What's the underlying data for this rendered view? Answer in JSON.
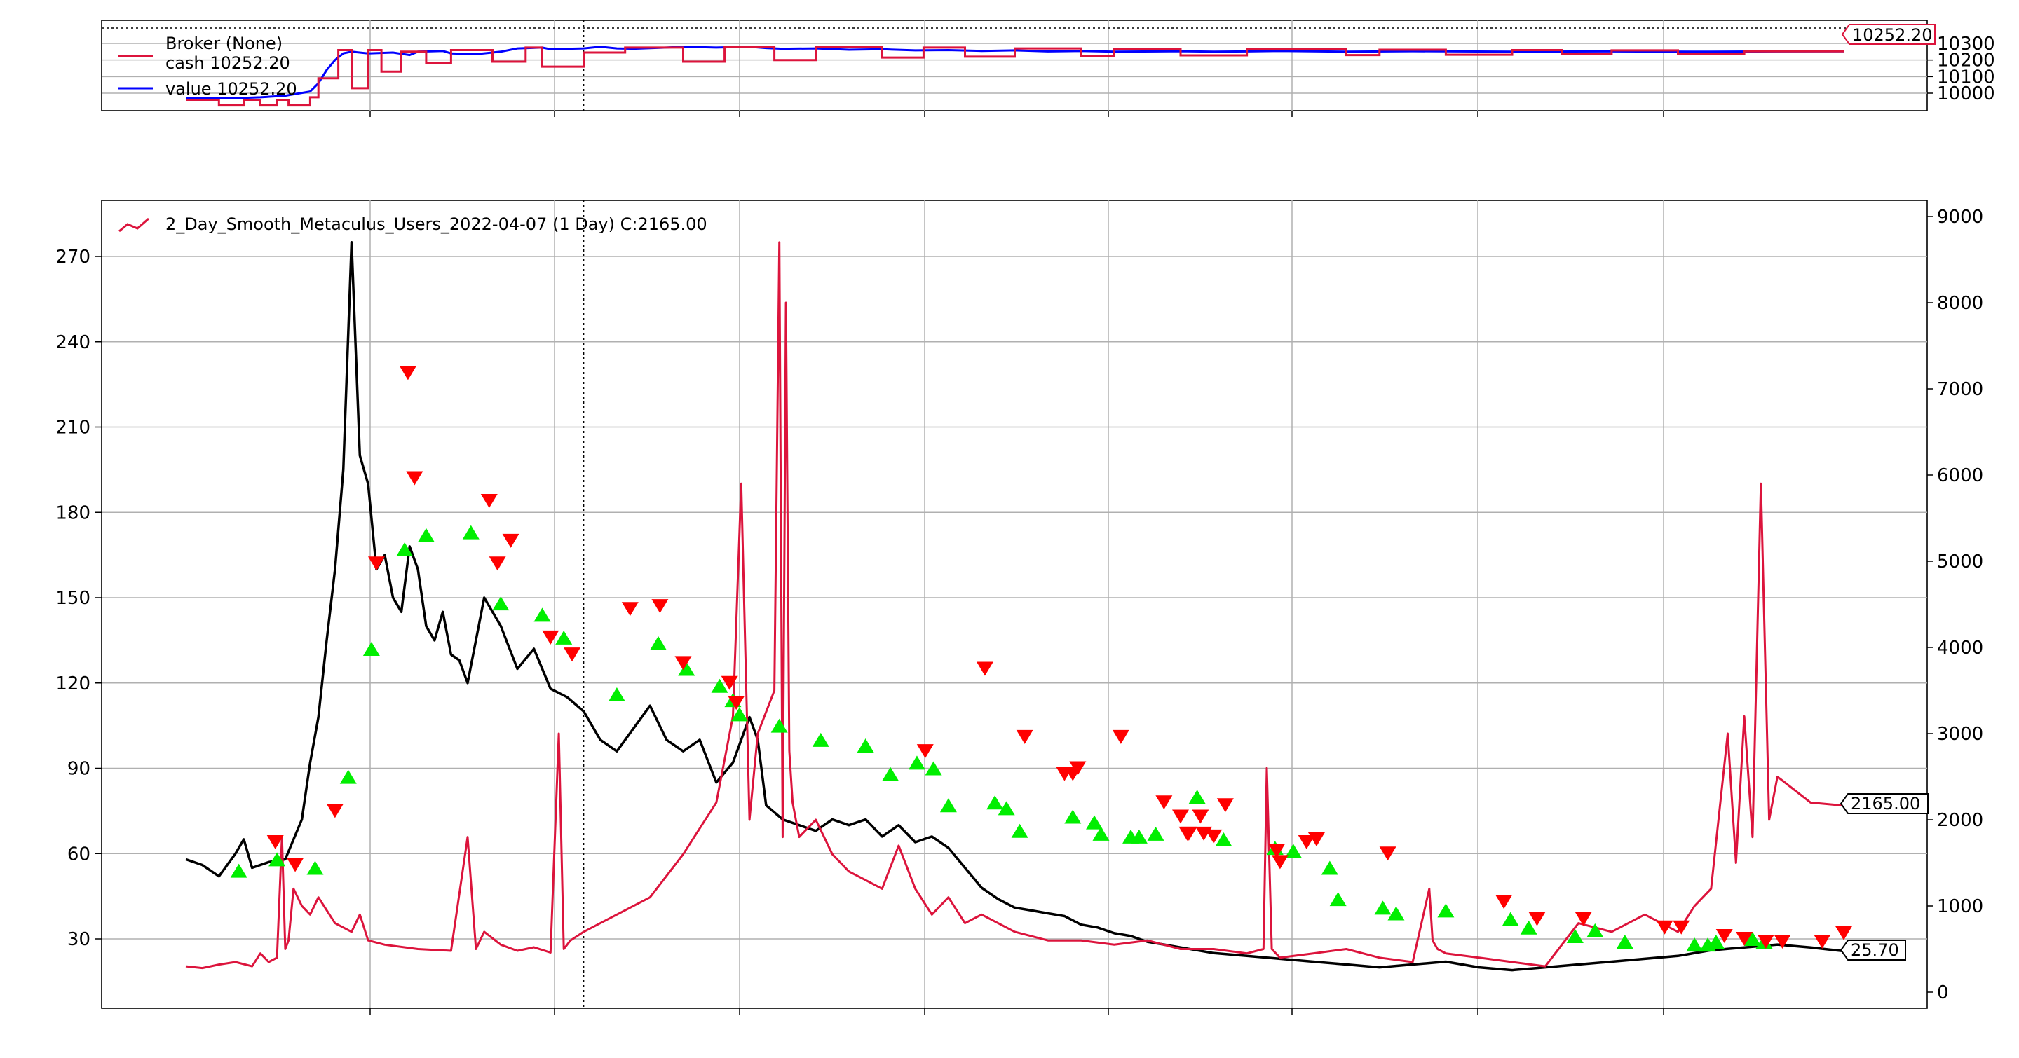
{
  "chart_data": [
    {
      "type": "line",
      "panel": "broker",
      "title": "",
      "xlabel": "",
      "ylabel": "",
      "ylim": [
        9930,
        10330
      ],
      "yticks": [
        10000,
        10100,
        10200,
        10300
      ],
      "grid": true,
      "legend_position": "top-left",
      "legend": {
        "header": "Broker (None)",
        "entries": [
          {
            "label": "cash 10252.20",
            "color": "#dc143c"
          },
          {
            "label": "value 10252.20",
            "color": "#0000ff"
          }
        ]
      },
      "last_value_label": "10252.20",
      "reference_level": 10300,
      "x_range": [
        0,
        1000
      ],
      "xticks": [
        100,
        200,
        300,
        400,
        500,
        600,
        700,
        800,
        900,
        1000
      ],
      "vline_x": 240,
      "series": [
        {
          "name": "value",
          "color": "#0000ff",
          "x": [
            0,
            30,
            45,
            60,
            75,
            80,
            85,
            90,
            95,
            100,
            110,
            125,
            135,
            140,
            155,
            160,
            175,
            190,
            200,
            215,
            220,
            240,
            250,
            260,
            270,
            290,
            300,
            320,
            340,
            350,
            360,
            380,
            400,
            420,
            440,
            460,
            480,
            500,
            520,
            540,
            560,
            600,
            620,
            640,
            660,
            700,
            740,
            800,
            860,
            920,
            960,
            1000
          ],
          "y": [
            9970,
            9970,
            9975,
            9985,
            10010,
            10060,
            10140,
            10200,
            10240,
            10250,
            10240,
            10245,
            10230,
            10250,
            10255,
            10240,
            10235,
            10250,
            10270,
            10275,
            10265,
            10270,
            10280,
            10270,
            10268,
            10275,
            10280,
            10275,
            10280,
            10272,
            10268,
            10270,
            10262,
            10265,
            10258,
            10260,
            10255,
            10258,
            10252,
            10255,
            10250,
            10253,
            10250,
            10252,
            10255,
            10250,
            10253,
            10250,
            10252,
            10250,
            10252,
            10252.2
          ]
        },
        {
          "name": "cash",
          "color": "#dc143c",
          "x": [
            0,
            20,
            20,
            35,
            35,
            45,
            45,
            55,
            55,
            62,
            62,
            75,
            75,
            80,
            80,
            92,
            92,
            100,
            100,
            110,
            110,
            118,
            118,
            130,
            130,
            145,
            145,
            160,
            160,
            185,
            185,
            205,
            205,
            215,
            215,
            240,
            240,
            265,
            265,
            300,
            300,
            325,
            325,
            355,
            355,
            380,
            380,
            420,
            420,
            445,
            445,
            470,
            470,
            500,
            500,
            540,
            540,
            560,
            560,
            600,
            600,
            640,
            640,
            700,
            700,
            720,
            720,
            760,
            760,
            800,
            800,
            830,
            830,
            860,
            860,
            900,
            900,
            940,
            940,
            1000
          ],
          "y": [
            9960,
            9960,
            9930,
            9930,
            9960,
            9960,
            9930,
            9930,
            9960,
            9960,
            9930,
            9930,
            9975,
            9975,
            10090,
            10090,
            10260,
            10260,
            10030,
            10030,
            10260,
            10260,
            10130,
            10130,
            10250,
            10250,
            10180,
            10180,
            10260,
            10260,
            10190,
            10190,
            10275,
            10275,
            10160,
            10160,
            10245,
            10245,
            10275,
            10275,
            10190,
            10190,
            10280,
            10280,
            10200,
            10200,
            10278,
            10278,
            10215,
            10215,
            10275,
            10275,
            10220,
            10220,
            10270,
            10270,
            10225,
            10225,
            10268,
            10268,
            10228,
            10228,
            10265,
            10265,
            10230,
            10230,
            10262,
            10262,
            10232,
            10232,
            10260,
            10260,
            10235,
            10235,
            10258,
            10258,
            10235,
            10235,
            10252.2,
            10252.2
          ]
        }
      ]
    },
    {
      "type": "line",
      "panel": "main",
      "title": "",
      "xlabel": "",
      "ylabel": "",
      "legend_position": "top-left",
      "legend_label": "2_Day_Smooth_Metaculus_Users_2022-04-07 (1 Day) C:2165.00",
      "grid": true,
      "x_range": [
        0,
        1000
      ],
      "xticks": [
        100,
        200,
        300,
        400,
        500,
        600,
        700,
        800,
        900,
        1000
      ],
      "vline_x": 240,
      "y_left": {
        "ylim": [
          5,
          283
        ],
        "ticks": [
          30,
          60,
          90,
          120,
          150,
          180,
          210,
          240,
          270
        ]
      },
      "y_right": {
        "ylim": [
          -200,
          9150
        ],
        "ticks": [
          0,
          1000,
          2000,
          3000,
          4000,
          5000,
          6000,
          7000,
          8000,
          9000
        ]
      },
      "last_value_labels": {
        "right_axis": "2165.00",
        "left_axis": "25.70"
      },
      "series": [
        {
          "name": "price",
          "axis": "left",
          "color": "#000000",
          "x": [
            0,
            10,
            20,
            30,
            35,
            40,
            50,
            60,
            70,
            75,
            80,
            85,
            90,
            95,
            100,
            105,
            110,
            115,
            120,
            125,
            130,
            135,
            140,
            145,
            150,
            155,
            160,
            165,
            170,
            180,
            190,
            200,
            210,
            220,
            230,
            240,
            250,
            260,
            270,
            280,
            290,
            300,
            310,
            320,
            330,
            340,
            345,
            350,
            360,
            370,
            380,
            390,
            400,
            410,
            420,
            430,
            440,
            450,
            460,
            470,
            480,
            490,
            500,
            510,
            520,
            530,
            540,
            550,
            560,
            570,
            580,
            590,
            600,
            620,
            640,
            660,
            680,
            700,
            720,
            740,
            760,
            780,
            800,
            820,
            840,
            860,
            880,
            900,
            920,
            940,
            960,
            980,
            1000
          ],
          "y": [
            58,
            56,
            52,
            60,
            65,
            55,
            57,
            58,
            72,
            92,
            108,
            135,
            160,
            195,
            275,
            200,
            190,
            160,
            165,
            150,
            145,
            168,
            160,
            140,
            135,
            145,
            130,
            128,
            120,
            150,
            140,
            125,
            132,
            118,
            115,
            110,
            100,
            96,
            104,
            112,
            100,
            96,
            100,
            85,
            92,
            108,
            100,
            77,
            72,
            70,
            68,
            72,
            70,
            72,
            66,
            70,
            64,
            66,
            62,
            55,
            48,
            44,
            41,
            40,
            39,
            38,
            35,
            34,
            32,
            31,
            29,
            28,
            27,
            25,
            24,
            23,
            22,
            21,
            20,
            21,
            22,
            20,
            19,
            20,
            21,
            22,
            23,
            24,
            26,
            27,
            28,
            27,
            25.7
          ]
        },
        {
          "name": "volume",
          "axis": "right",
          "color": "#dc143c",
          "x": [
            0,
            10,
            20,
            30,
            40,
            45,
            50,
            55,
            58,
            60,
            62,
            65,
            70,
            75,
            80,
            90,
            100,
            105,
            110,
            120,
            140,
            160,
            170,
            175,
            180,
            190,
            200,
            210,
            220,
            225,
            228,
            232,
            240,
            250,
            260,
            280,
            300,
            320,
            330,
            335,
            340,
            345,
            355,
            358,
            360,
            362,
            364,
            366,
            370,
            380,
            390,
            400,
            410,
            420,
            430,
            440,
            450,
            460,
            470,
            480,
            500,
            520,
            540,
            560,
            580,
            600,
            620,
            640,
            650,
            652,
            655,
            660,
            680,
            700,
            720,
            740,
            750,
            752,
            755,
            760,
            780,
            800,
            820,
            840,
            860,
            880,
            900,
            910,
            920,
            930,
            935,
            940,
            945,
            950,
            955,
            960,
            980,
            1000
          ],
          "y": [
            300,
            280,
            320,
            350,
            300,
            450,
            350,
            400,
            1800,
            500,
            600,
            1200,
            1000,
            900,
            1100,
            800,
            700,
            900,
            600,
            550,
            500,
            480,
            1800,
            500,
            700,
            550,
            480,
            520,
            460,
            3000,
            500,
            600,
            700,
            800,
            900,
            1100,
            1600,
            2200,
            3200,
            5900,
            2000,
            3000,
            3500,
            8700,
            1800,
            8000,
            2800,
            2200,
            1800,
            2000,
            1600,
            1400,
            1300,
            1200,
            1700,
            1200,
            900,
            1100,
            800,
            900,
            700,
            600,
            600,
            550,
            600,
            500,
            500,
            450,
            500,
            2600,
            500,
            400,
            450,
            500,
            400,
            350,
            1200,
            600,
            500,
            450,
            400,
            350,
            300,
            800,
            700,
            900,
            700,
            1000,
            1200,
            3000,
            1500,
            3200,
            1800,
            5900,
            2000,
            2500,
            2200,
            2165
          ]
        }
      ],
      "buy_signals": {
        "marker": "triangle-up",
        "color": "#00ee00",
        "x": [
          32,
          55,
          78,
          98,
          112,
          132,
          145,
          172,
          190,
          215,
          228,
          260,
          285,
          302,
          322,
          330,
          334,
          358,
          383,
          410,
          425,
          441,
          451,
          460,
          488,
          495,
          503,
          535,
          548,
          552,
          570,
          575,
          585,
          610,
          626,
          657,
          668,
          690,
          695,
          722,
          730,
          760,
          799,
          810,
          838,
          850,
          868,
          910,
          918,
          923,
          945,
          952
        ],
        "y": [
          54,
          58,
          55,
          87,
          132,
          167,
          172,
          173,
          148,
          144,
          136,
          116,
          134,
          125,
          119,
          114,
          109,
          105,
          100,
          98,
          88,
          92,
          90,
          77,
          78,
          76,
          68,
          73,
          71,
          67,
          66,
          66,
          67,
          80,
          65,
          62,
          61,
          55,
          44,
          41,
          39,
          40,
          37,
          34,
          31,
          33,
          29,
          28,
          28,
          29,
          30,
          29
        ]
      },
      "sell_signals": {
        "marker": "triangle-down",
        "color": "#ff0000",
        "x": [
          54,
          66,
          90,
          115,
          134,
          138,
          183,
          188,
          196,
          220,
          233,
          268,
          286,
          300,
          328,
          332,
          446,
          482,
          506,
          530,
          535,
          538,
          564,
          590,
          600,
          612,
          658,
          605,
          660,
          614,
          627,
          604,
          620,
          682,
          676,
          725,
          795,
          815,
          843,
          892,
          902,
          928,
          940,
          953,
          963,
          987,
          1000
        ],
        "y": [
          64,
          56,
          75,
          162,
          229,
          192,
          184,
          162,
          170,
          136,
          130,
          146,
          147,
          127,
          120,
          113,
          96,
          125,
          101,
          88,
          88,
          90,
          101,
          78,
          73,
          73,
          61,
          67,
          57,
          67,
          77,
          67,
          66,
          65,
          64,
          60,
          43,
          37,
          37,
          34,
          34,
          31,
          30,
          29,
          29,
          29,
          32
        ]
      }
    }
  ]
}
